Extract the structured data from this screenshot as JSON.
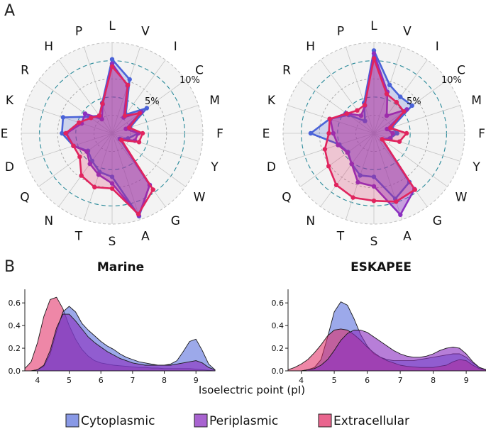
{
  "panels": {
    "a": "A",
    "b": "B"
  },
  "legend": [
    {
      "label": "Cytoplasmic",
      "color": "#4a63d8"
    },
    {
      "label": "Periplasmic",
      "color": "#8b2fc0"
    },
    {
      "label": "Extracellular",
      "color": "#e0245e"
    }
  ],
  "chart_data": [
    {
      "type": "radar",
      "title": "",
      "categories": [
        "L",
        "V",
        "I",
        "C",
        "M",
        "F",
        "Y",
        "W",
        "G",
        "A",
        "S",
        "T",
        "N",
        "Q",
        "D",
        "E",
        "K",
        "R",
        "H",
        "P"
      ],
      "ring_labels": [
        "5%",
        "10%"
      ],
      "rmax": 12.5,
      "series": [
        {
          "name": "Cytoplasmic",
          "values": [
            10.2,
            7.8,
            3.2,
            5.9,
            2.6,
            3.6,
            2.3,
            1.3,
            8.8,
            12.0,
            6.0,
            5.6,
            4.7,
            4.1,
            5.6,
            6.9,
            7.1,
            3.9,
            3.0,
            4.4
          ]
        },
        {
          "name": "Periplasmic",
          "values": [
            9.6,
            6.9,
            2.7,
            5.0,
            2.0,
            3.6,
            3.3,
            1.4,
            8.8,
            11.9,
            6.9,
            6.0,
            5.2,
            4.3,
            5.6,
            6.3,
            4.4,
            4.6,
            2.4,
            4.2
          ]
        },
        {
          "name": "Extracellular",
          "values": [
            9.2,
            7.0,
            3.0,
            4.7,
            2.5,
            4.2,
            3.9,
            1.6,
            9.6,
            11.7,
            7.6,
            7.8,
            7.2,
            5.5,
            5.6,
            6.4,
            4.8,
            3.6,
            3.0,
            4.3
          ]
        }
      ]
    },
    {
      "type": "radar",
      "title": "",
      "categories": [
        "L",
        "V",
        "I",
        "C",
        "M",
        "F",
        "Y",
        "W",
        "G",
        "A",
        "S",
        "T",
        "N",
        "Q",
        "D",
        "E",
        "K",
        "R",
        "H",
        "P"
      ],
      "ring_labels": [
        "5%",
        "10%"
      ],
      "rmax": 12.5,
      "series": [
        {
          "name": "Cytoplasmic",
          "values": [
            11.4,
            7.0,
            6.2,
            6.5,
            2.6,
            3.2,
            2.3,
            1.4,
            8.3,
            9.5,
            6.0,
            6.1,
            5.2,
            4.4,
            5.0,
            8.7,
            6.4,
            4.3,
            2.1,
            4.4
          ]
        },
        {
          "name": "Periplasmic",
          "values": [
            11.0,
            6.0,
            3.0,
            5.6,
            1.9,
            2.6,
            2.4,
            1.4,
            9.5,
            11.8,
            7.3,
            7.1,
            5.2,
            4.5,
            5.2,
            5.6,
            6.3,
            4.7,
            3.0,
            4.0
          ]
        },
        {
          "name": "Extracellular",
          "values": [
            10.3,
            5.7,
            5.3,
            5.1,
            2.4,
            4.5,
            3.7,
            1.4,
            9.6,
            9.9,
            9.3,
            9.3,
            8.8,
            7.7,
            7.1,
            6.2,
            6.4,
            4.6,
            3.9,
            4.1
          ]
        }
      ]
    },
    {
      "type": "area",
      "title": "Marine",
      "xlabel": "",
      "ylabel": "",
      "xlim": [
        3.6,
        9.6
      ],
      "ylim": [
        0,
        0.72
      ],
      "xticks": [
        4,
        5,
        6,
        7,
        8,
        9
      ],
      "yticks": [
        "0.0",
        "0.2",
        "0.4",
        "0.6"
      ],
      "series": [
        {
          "name": "Extracellular",
          "x": [
            3.6,
            3.8,
            4.0,
            4.2,
            4.4,
            4.6,
            4.8,
            5.0,
            5.2,
            5.4,
            5.6,
            5.8,
            6.0,
            6.2,
            6.4,
            6.6,
            6.8,
            7.0,
            7.2,
            7.4,
            7.6,
            7.8,
            8.0,
            8.2,
            8.4,
            8.6,
            8.8,
            9.0,
            9.2,
            9.4,
            9.6
          ],
          "values": [
            0.02,
            0.08,
            0.25,
            0.48,
            0.63,
            0.65,
            0.55,
            0.4,
            0.28,
            0.19,
            0.13,
            0.09,
            0.07,
            0.06,
            0.05,
            0.045,
            0.04,
            0.035,
            0.03,
            0.03,
            0.025,
            0.025,
            0.02,
            0.02,
            0.02,
            0.02,
            0.02,
            0.015,
            0.01,
            0.005,
            0.0
          ]
        },
        {
          "name": "Cytoplasmic",
          "x": [
            3.6,
            3.8,
            4.0,
            4.2,
            4.4,
            4.6,
            4.8,
            5.0,
            5.2,
            5.4,
            5.6,
            5.8,
            6.0,
            6.2,
            6.4,
            6.6,
            6.8,
            7.0,
            7.2,
            7.4,
            7.6,
            7.8,
            8.0,
            8.2,
            8.4,
            8.6,
            8.8,
            9.0,
            9.2,
            9.4,
            9.6
          ],
          "values": [
            0.0,
            0.0,
            0.01,
            0.04,
            0.15,
            0.35,
            0.52,
            0.57,
            0.52,
            0.42,
            0.36,
            0.31,
            0.26,
            0.22,
            0.19,
            0.15,
            0.12,
            0.1,
            0.08,
            0.07,
            0.06,
            0.05,
            0.05,
            0.06,
            0.09,
            0.17,
            0.26,
            0.28,
            0.18,
            0.06,
            0.01
          ]
        },
        {
          "name": "Periplasmic",
          "x": [
            3.6,
            3.8,
            4.0,
            4.2,
            4.4,
            4.6,
            4.8,
            5.0,
            5.2,
            5.4,
            5.6,
            5.8,
            6.0,
            6.2,
            6.4,
            6.6,
            6.8,
            7.0,
            7.2,
            7.4,
            7.6,
            7.8,
            8.0,
            8.2,
            8.4,
            8.6,
            8.8,
            9.0,
            9.2,
            9.4,
            9.6
          ],
          "values": [
            0.0,
            0.0,
            0.01,
            0.05,
            0.18,
            0.38,
            0.5,
            0.5,
            0.44,
            0.37,
            0.3,
            0.25,
            0.21,
            0.17,
            0.14,
            0.11,
            0.09,
            0.07,
            0.06,
            0.05,
            0.05,
            0.05,
            0.05,
            0.05,
            0.06,
            0.07,
            0.08,
            0.09,
            0.07,
            0.03,
            0.01
          ]
        }
      ]
    },
    {
      "type": "area",
      "title": "ESKAPEE",
      "xlabel": "",
      "ylabel": "",
      "xlim": [
        3.6,
        9.6
      ],
      "ylim": [
        0,
        0.72
      ],
      "xticks": [
        4,
        5,
        6,
        7,
        8,
        9
      ],
      "yticks": [
        "0.0",
        "0.2",
        "0.4",
        "0.6"
      ],
      "series": [
        {
          "name": "Cytoplasmic",
          "x": [
            3.6,
            3.8,
            4.0,
            4.2,
            4.4,
            4.6,
            4.8,
            5.0,
            5.2,
            5.4,
            5.6,
            5.8,
            6.0,
            6.2,
            6.4,
            6.6,
            6.8,
            7.0,
            7.2,
            7.4,
            7.6,
            7.8,
            8.0,
            8.2,
            8.4,
            8.6,
            8.8,
            9.0,
            9.2,
            9.4,
            9.6
          ],
          "values": [
            0.0,
            0.0,
            0.0,
            0.01,
            0.03,
            0.1,
            0.3,
            0.52,
            0.61,
            0.58,
            0.46,
            0.32,
            0.22,
            0.15,
            0.12,
            0.1,
            0.09,
            0.09,
            0.09,
            0.09,
            0.1,
            0.11,
            0.12,
            0.13,
            0.14,
            0.15,
            0.15,
            0.12,
            0.07,
            0.03,
            0.01
          ]
        },
        {
          "name": "Extracellular",
          "x": [
            3.6,
            3.8,
            4.0,
            4.2,
            4.4,
            4.6,
            4.8,
            5.0,
            5.2,
            5.4,
            5.6,
            5.8,
            6.0,
            6.2,
            6.4,
            6.6,
            6.8,
            7.0,
            7.2,
            7.4,
            7.6,
            7.8,
            8.0,
            8.2,
            8.4,
            8.6,
            8.8,
            9.0,
            9.2,
            9.4,
            9.6
          ],
          "values": [
            0.01,
            0.03,
            0.06,
            0.1,
            0.16,
            0.23,
            0.31,
            0.36,
            0.37,
            0.36,
            0.32,
            0.27,
            0.21,
            0.16,
            0.12,
            0.09,
            0.07,
            0.05,
            0.04,
            0.035,
            0.03,
            0.03,
            0.03,
            0.04,
            0.05,
            0.08,
            0.1,
            0.09,
            0.05,
            0.02,
            0.01
          ]
        },
        {
          "name": "Periplasmic",
          "x": [
            3.6,
            3.8,
            4.0,
            4.2,
            4.4,
            4.6,
            4.8,
            5.0,
            5.2,
            5.4,
            5.6,
            5.8,
            6.0,
            6.2,
            6.4,
            6.6,
            6.8,
            7.0,
            7.2,
            7.4,
            7.6,
            7.8,
            8.0,
            8.2,
            8.4,
            8.6,
            8.8,
            9.0,
            9.2,
            9.4,
            9.6
          ],
          "values": [
            0.0,
            0.0,
            0.0,
            0.01,
            0.02,
            0.05,
            0.1,
            0.18,
            0.27,
            0.33,
            0.36,
            0.36,
            0.34,
            0.3,
            0.26,
            0.22,
            0.18,
            0.15,
            0.13,
            0.12,
            0.12,
            0.13,
            0.15,
            0.18,
            0.2,
            0.21,
            0.2,
            0.15,
            0.08,
            0.03,
            0.01
          ]
        }
      ]
    }
  ],
  "shared_xlabel": "Isoelectric point (pI)"
}
